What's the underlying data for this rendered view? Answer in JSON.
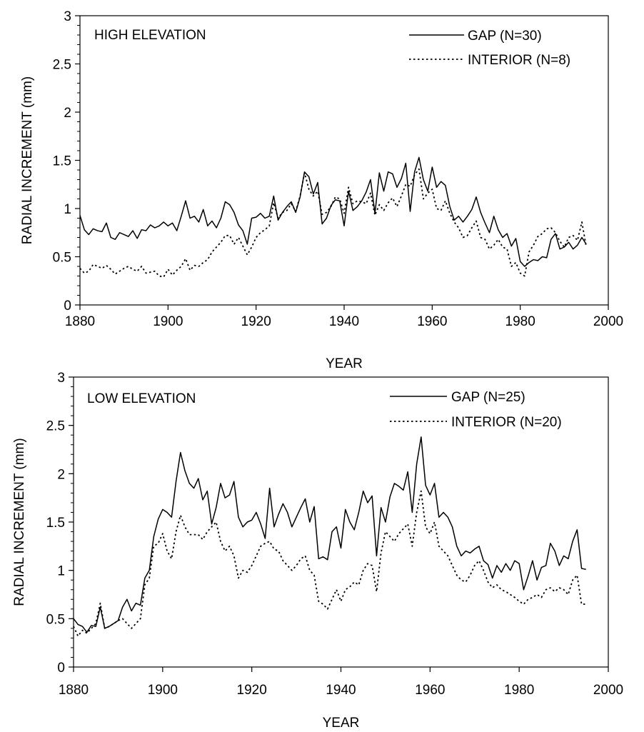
{
  "chart_data": [
    {
      "type": "line",
      "panel_label": "HIGH ELEVATION",
      "xlabel": "YEAR",
      "ylabel": "RADIAL INCREMENT (mm)",
      "xlim": [
        1880,
        2000
      ],
      "ylim": [
        0,
        3
      ],
      "xticks": [
        "1880",
        "1900",
        "1920",
        "1940",
        "1960",
        "1980",
        "2000"
      ],
      "yticks": [
        "0",
        "0.5",
        "1",
        "1.5",
        "2",
        "2.5",
        "3"
      ],
      "legend_position": "top-right",
      "grid": false,
      "series": [
        {
          "name": "GAP (N=30)",
          "style": "solid",
          "x": [
            1880,
            1881,
            1882,
            1883,
            1884,
            1885,
            1886,
            1887,
            1888,
            1889,
            1890,
            1891,
            1892,
            1893,
            1894,
            1895,
            1896,
            1897,
            1898,
            1899,
            1900,
            1901,
            1902,
            1903,
            1904,
            1905,
            1906,
            1907,
            1908,
            1909,
            1910,
            1911,
            1912,
            1913,
            1914,
            1915,
            1916,
            1917,
            1918,
            1919,
            1920,
            1921,
            1922,
            1923,
            1924,
            1925,
            1926,
            1927,
            1928,
            1929,
            1930,
            1931,
            1932,
            1933,
            1934,
            1935,
            1936,
            1937,
            1938,
            1939,
            1940,
            1941,
            1942,
            1943,
            1944,
            1945,
            1946,
            1947,
            1948,
            1949,
            1950,
            1951,
            1952,
            1953,
            1954,
            1955,
            1956,
            1957,
            1958,
            1959,
            1960,
            1961,
            1962,
            1963,
            1964,
            1965,
            1966,
            1967,
            1968,
            1969,
            1970,
            1971,
            1972,
            1973,
            1974,
            1975,
            1976,
            1977,
            1978,
            1979,
            1980,
            1981,
            1982,
            1983,
            1984,
            1985,
            1986,
            1987,
            1988,
            1989,
            1990,
            1991,
            1992,
            1993,
            1994,
            1995
          ],
          "values": [
            0.93,
            0.78,
            0.73,
            0.79,
            0.77,
            0.76,
            0.85,
            0.7,
            0.68,
            0.75,
            0.73,
            0.71,
            0.77,
            0.69,
            0.78,
            0.77,
            0.83,
            0.8,
            0.82,
            0.86,
            0.82,
            0.85,
            0.77,
            0.92,
            1.08,
            0.9,
            0.92,
            0.86,
            0.99,
            0.82,
            0.87,
            0.8,
            0.9,
            1.07,
            1.04,
            0.96,
            0.83,
            0.77,
            0.63,
            0.9,
            0.91,
            0.95,
            0.9,
            0.92,
            1.13,
            0.88,
            0.96,
            1.02,
            1.07,
            0.96,
            1.12,
            1.38,
            1.33,
            1.15,
            1.27,
            0.84,
            0.9,
            1.03,
            1.09,
            1.08,
            0.82,
            1.18,
            0.98,
            1.02,
            1.08,
            1.17,
            1.3,
            0.95,
            1.37,
            1.18,
            1.38,
            1.36,
            1.22,
            1.31,
            1.47,
            0.97,
            1.38,
            1.53,
            1.3,
            1.18,
            1.43,
            1.22,
            1.28,
            1.24,
            1.02,
            0.88,
            0.92,
            0.86,
            0.92,
            0.99,
            1.12,
            0.96,
            0.85,
            0.75,
            0.92,
            0.78,
            0.7,
            0.74,
            0.61,
            0.69,
            0.45,
            0.4,
            0.44,
            0.47,
            0.46,
            0.5,
            0.49,
            0.68,
            0.74,
            0.58,
            0.6,
            0.65,
            0.58,
            0.62,
            0.7,
            0.63
          ]
        },
        {
          "name": "INTERIOR (N=8)",
          "style": "dotted",
          "x": [
            1880,
            1881,
            1882,
            1883,
            1884,
            1885,
            1886,
            1887,
            1888,
            1889,
            1890,
            1891,
            1892,
            1893,
            1894,
            1895,
            1896,
            1897,
            1898,
            1899,
            1900,
            1901,
            1902,
            1903,
            1904,
            1905,
            1906,
            1907,
            1908,
            1909,
            1910,
            1911,
            1912,
            1913,
            1914,
            1915,
            1916,
            1917,
            1918,
            1919,
            1920,
            1921,
            1922,
            1923,
            1924,
            1925,
            1926,
            1927,
            1928,
            1929,
            1930,
            1931,
            1932,
            1933,
            1934,
            1935,
            1936,
            1937,
            1938,
            1939,
            1940,
            1941,
            1942,
            1943,
            1944,
            1945,
            1946,
            1947,
            1948,
            1949,
            1950,
            1951,
            1952,
            1953,
            1954,
            1955,
            1956,
            1957,
            1958,
            1959,
            1960,
            1961,
            1962,
            1963,
            1964,
            1965,
            1966,
            1967,
            1968,
            1969,
            1970,
            1971,
            1972,
            1973,
            1974,
            1975,
            1976,
            1977,
            1978,
            1979,
            1980,
            1981,
            1982,
            1983,
            1984,
            1985,
            1986,
            1987,
            1988,
            1989,
            1990,
            1991,
            1992,
            1993,
            1994,
            1995
          ],
          "values": [
            0.38,
            0.33,
            0.35,
            0.42,
            0.4,
            0.38,
            0.41,
            0.37,
            0.32,
            0.35,
            0.38,
            0.4,
            0.37,
            0.35,
            0.4,
            0.33,
            0.34,
            0.35,
            0.3,
            0.29,
            0.37,
            0.31,
            0.36,
            0.4,
            0.48,
            0.36,
            0.41,
            0.4,
            0.44,
            0.47,
            0.55,
            0.6,
            0.65,
            0.72,
            0.72,
            0.63,
            0.7,
            0.61,
            0.52,
            0.6,
            0.7,
            0.75,
            0.78,
            0.82,
            1.06,
            0.9,
            0.96,
            0.98,
            1.05,
            0.97,
            1.13,
            1.37,
            1.2,
            1.13,
            1.18,
            0.94,
            0.96,
            1.02,
            1.12,
            1.1,
            0.95,
            1.22,
            1.05,
            1.08,
            1.07,
            1.05,
            1.16,
            0.93,
            1.04,
            0.98,
            1.06,
            1.11,
            1.02,
            1.13,
            1.25,
            1.23,
            1.35,
            1.41,
            1.1,
            1.16,
            1.2,
            1.0,
            0.98,
            1.08,
            0.95,
            0.86,
            0.8,
            0.7,
            0.72,
            0.8,
            0.87,
            0.7,
            0.68,
            0.58,
            0.62,
            0.68,
            0.6,
            0.58,
            0.4,
            0.44,
            0.33,
            0.3,
            0.55,
            0.62,
            0.71,
            0.74,
            0.79,
            0.8,
            0.75,
            0.66,
            0.6,
            0.7,
            0.72,
            0.67,
            0.86,
            0.6
          ]
        }
      ]
    },
    {
      "type": "line",
      "panel_label": "LOW ELEVATION",
      "xlabel": "YEAR",
      "ylabel": "RADIAL INCREMENT (mm)",
      "xlim": [
        1880,
        2000
      ],
      "ylim": [
        0,
        3
      ],
      "xticks": [
        "1880",
        "1900",
        "1920",
        "1940",
        "1960",
        "1980",
        "2000"
      ],
      "yticks": [
        "0",
        "0.5",
        "1",
        "1.5",
        "2",
        "2.5",
        "3"
      ],
      "legend_position": "top-right",
      "grid": false,
      "series": [
        {
          "name": "GAP (N=25)",
          "style": "solid",
          "x": [
            1880,
            1881,
            1882,
            1883,
            1884,
            1885,
            1886,
            1887,
            1888,
            1889,
            1890,
            1891,
            1892,
            1893,
            1894,
            1895,
            1896,
            1897,
            1898,
            1899,
            1900,
            1901,
            1902,
            1903,
            1904,
            1905,
            1906,
            1907,
            1908,
            1909,
            1910,
            1911,
            1912,
            1913,
            1914,
            1915,
            1916,
            1917,
            1918,
            1919,
            1920,
            1921,
            1922,
            1923,
            1924,
            1925,
            1926,
            1927,
            1928,
            1929,
            1930,
            1931,
            1932,
            1933,
            1934,
            1935,
            1936,
            1937,
            1938,
            1939,
            1940,
            1941,
            1942,
            1943,
            1944,
            1945,
            1946,
            1947,
            1948,
            1949,
            1950,
            1951,
            1952,
            1953,
            1954,
            1955,
            1956,
            1957,
            1958,
            1959,
            1960,
            1961,
            1962,
            1963,
            1964,
            1965,
            1966,
            1967,
            1968,
            1969,
            1970,
            1971,
            1972,
            1973,
            1974,
            1975,
            1976,
            1977,
            1978,
            1979,
            1980,
            1981,
            1982,
            1983,
            1984,
            1985,
            1986,
            1987,
            1988,
            1989,
            1990,
            1991,
            1992,
            1993,
            1994,
            1995
          ],
          "values": [
            0.5,
            0.44,
            0.42,
            0.36,
            0.43,
            0.42,
            0.62,
            0.4,
            0.42,
            0.45,
            0.48,
            0.62,
            0.7,
            0.58,
            0.66,
            0.64,
            0.92,
            1.0,
            1.35,
            1.53,
            1.63,
            1.6,
            1.55,
            1.92,
            2.22,
            2.03,
            1.9,
            1.85,
            1.95,
            1.73,
            1.82,
            1.48,
            1.65,
            1.9,
            1.75,
            1.78,
            1.92,
            1.55,
            1.45,
            1.5,
            1.52,
            1.6,
            1.48,
            1.33,
            1.85,
            1.45,
            1.58,
            1.69,
            1.6,
            1.45,
            1.55,
            1.65,
            1.74,
            1.5,
            1.66,
            1.12,
            1.14,
            1.11,
            1.4,
            1.45,
            1.23,
            1.63,
            1.5,
            1.42,
            1.6,
            1.82,
            1.7,
            1.77,
            1.15,
            1.65,
            1.5,
            1.76,
            1.9,
            1.87,
            1.83,
            2.02,
            1.6,
            2.1,
            2.38,
            1.88,
            1.78,
            1.9,
            1.55,
            1.6,
            1.55,
            1.45,
            1.25,
            1.15,
            1.2,
            1.18,
            1.22,
            1.25,
            1.1,
            1.06,
            0.92,
            1.05,
            0.98,
            1.07,
            1.0,
            1.1,
            1.07,
            0.8,
            0.94,
            1.1,
            0.9,
            1.03,
            1.05,
            1.28,
            1.2,
            1.05,
            1.15,
            1.12,
            1.3,
            1.42,
            1.02,
            1.01
          ]
        },
        {
          "name": "INTERIOR (N=20)",
          "style": "dotted",
          "x": [
            1880,
            1881,
            1882,
            1883,
            1884,
            1885,
            1886,
            1887,
            1888,
            1889,
            1890,
            1891,
            1892,
            1893,
            1894,
            1895,
            1896,
            1897,
            1898,
            1899,
            1900,
            1901,
            1902,
            1903,
            1904,
            1905,
            1906,
            1907,
            1908,
            1909,
            1910,
            1911,
            1912,
            1913,
            1914,
            1915,
            1916,
            1917,
            1918,
            1919,
            1920,
            1921,
            1922,
            1923,
            1924,
            1925,
            1926,
            1927,
            1928,
            1929,
            1930,
            1931,
            1932,
            1933,
            1934,
            1935,
            1936,
            1937,
            1938,
            1939,
            1940,
            1941,
            1942,
            1943,
            1944,
            1945,
            1946,
            1947,
            1948,
            1949,
            1950,
            1951,
            1952,
            1953,
            1954,
            1955,
            1956,
            1957,
            1958,
            1959,
            1960,
            1961,
            1962,
            1963,
            1964,
            1965,
            1966,
            1967,
            1968,
            1969,
            1970,
            1971,
            1972,
            1973,
            1974,
            1975,
            1976,
            1977,
            1978,
            1979,
            1980,
            1981,
            1982,
            1983,
            1984,
            1985,
            1986,
            1987,
            1988,
            1989,
            1990,
            1991,
            1992,
            1993,
            1994,
            1995
          ],
          "values": [
            0.42,
            0.32,
            0.38,
            0.35,
            0.4,
            0.45,
            0.66,
            0.4,
            0.42,
            0.45,
            0.48,
            0.5,
            0.45,
            0.4,
            0.45,
            0.5,
            0.85,
            0.92,
            1.25,
            1.28,
            1.38,
            1.2,
            1.12,
            1.4,
            1.57,
            1.45,
            1.37,
            1.37,
            1.37,
            1.32,
            1.4,
            1.45,
            1.5,
            1.3,
            1.2,
            1.25,
            1.15,
            0.92,
            1.0,
            0.98,
            1.05,
            1.15,
            1.25,
            1.28,
            1.3,
            1.22,
            1.2,
            1.1,
            1.05,
            1.0,
            1.05,
            1.12,
            1.15,
            1.0,
            0.95,
            0.68,
            0.65,
            0.6,
            0.7,
            0.8,
            0.68,
            0.8,
            0.83,
            0.88,
            0.85,
            1.0,
            1.07,
            1.05,
            0.78,
            1.18,
            1.4,
            1.35,
            1.3,
            1.38,
            1.43,
            1.48,
            1.25,
            1.6,
            1.82,
            1.45,
            1.38,
            1.5,
            1.25,
            1.2,
            1.15,
            1.05,
            0.95,
            0.9,
            0.88,
            0.95,
            1.05,
            1.1,
            1.0,
            0.88,
            0.82,
            0.85,
            0.8,
            0.78,
            0.75,
            0.72,
            0.68,
            0.65,
            0.7,
            0.72,
            0.75,
            0.72,
            0.8,
            0.82,
            0.78,
            0.82,
            0.8,
            0.75,
            0.9,
            0.95,
            0.65,
            0.65
          ]
        }
      ]
    }
  ]
}
